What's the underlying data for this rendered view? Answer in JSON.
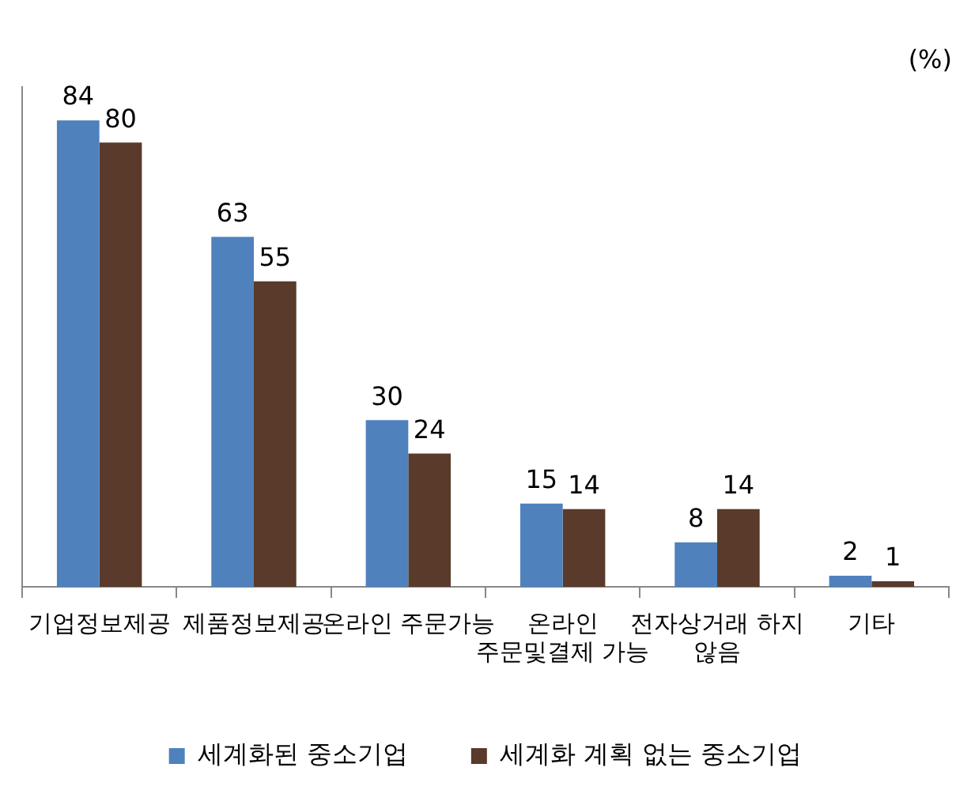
{
  "chart_data": {
    "type": "bar",
    "categories": [
      "기업정보제공",
      "제품정보제공",
      "온라인 주문가능",
      "온라인\n주문및결제 가능",
      "전자상거래 하지\n않음",
      "기타"
    ],
    "series": [
      {
        "name": "세계화된 중소기업",
        "color": "#4f81bd",
        "values": [
          84,
          63,
          30,
          15,
          8,
          2
        ]
      },
      {
        "name": "세계화 계획 없는 중소기업",
        "color": "#5a3a2a",
        "values": [
          80,
          55,
          24,
          14,
          14,
          1
        ]
      }
    ],
    "data_labels": true,
    "legend": "bottom",
    "grid": false,
    "annotations": [
      "(%)"
    ]
  }
}
